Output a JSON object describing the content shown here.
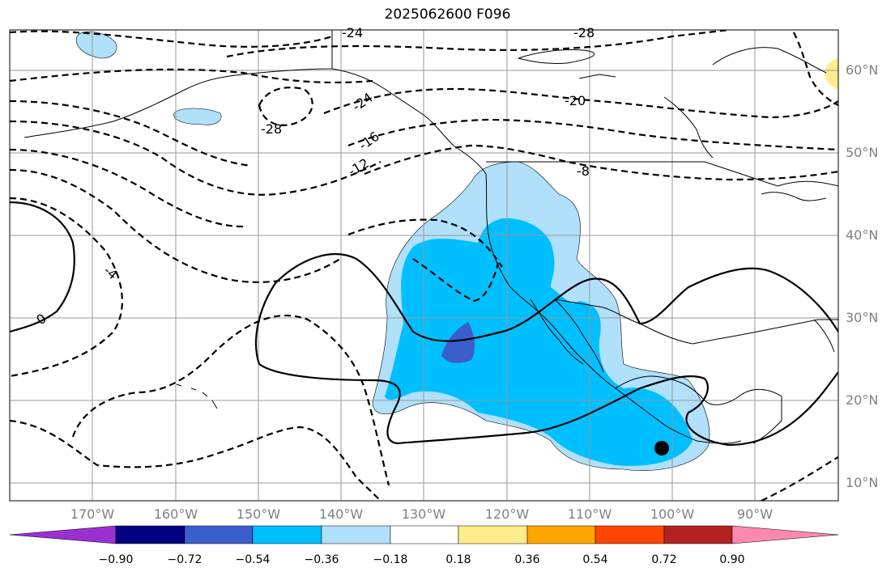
{
  "title": "2025062600 F096",
  "lat_labels": [
    "60°N",
    "50°N",
    "40°N",
    "30°N",
    "20°N",
    "10°N"
  ],
  "lon_labels": [
    "170°W",
    "160°W",
    "150°W",
    "140°W",
    "130°W",
    "120°W",
    "110°W",
    "100°W",
    "90°W"
  ],
  "contour_labels": [
    "-24",
    "-28",
    "-24",
    "-20",
    "-28",
    "-16",
    "-12",
    "-8",
    "-4",
    "0"
  ],
  "colorbar": {
    "ticks": [
      "−0.90",
      "−0.72",
      "−0.54",
      "−0.36",
      "−0.18",
      "0.18",
      "0.36",
      "0.54",
      "0.72",
      "0.90"
    ],
    "colors": [
      "#9b30d0",
      "#000080",
      "#3a5fcd",
      "#00bfff",
      "#b0e0fa",
      "#ffffff",
      "#ffec8b",
      "#ffa500",
      "#ff4500",
      "#b22222",
      "#ff88b0"
    ]
  },
  "marker": "storm-center-dot"
}
